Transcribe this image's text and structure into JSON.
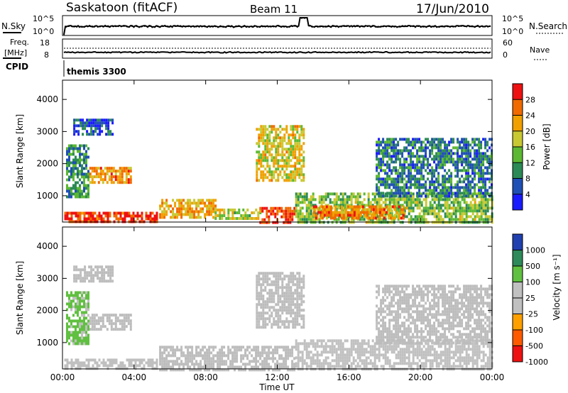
{
  "header": {
    "station": "Saskatoon (fitACF)",
    "beam": "Beam 11",
    "date": "17/Jun/2010"
  },
  "nsky_panel": {
    "left_label": "N.Sky",
    "right_label": "N.Search",
    "left_ticks": [
      "10^5",
      "10^0"
    ],
    "right_ticks": [
      "10^5",
      "10^0"
    ]
  },
  "freq_panel": {
    "left_label_1": "Freq.",
    "left_label_2": "[MHz]",
    "right_label": "Nave",
    "left_ticks": [
      "18",
      "8"
    ],
    "right_ticks": [
      "60",
      "0"
    ]
  },
  "cpid": {
    "label": "CPID",
    "program": "themis 3300"
  },
  "power_panel": {
    "ylabel": "Slant Range [km]",
    "yticks": [
      "4000",
      "3000",
      "2000",
      "1000"
    ],
    "colorbar_label": "Power [dB]",
    "colorbar_ticks": [
      "28",
      "24",
      "20",
      "16",
      "12",
      "8",
      "4"
    ]
  },
  "velocity_panel": {
    "ylabel": "Slant Range [km]",
    "yticks": [
      "4000",
      "3000",
      "2000",
      "1000"
    ],
    "colorbar_label": "Velocity [m s⁻¹]",
    "colorbar_ticks": [
      "1000",
      "500",
      "100",
      "25",
      "-25",
      "-100",
      "-500",
      "-1000"
    ]
  },
  "xaxis": {
    "label": "Time UT",
    "ticks": [
      "00:00",
      "04:00",
      "08:00",
      "12:00",
      "16:00",
      "20:00",
      "00:00"
    ]
  },
  "colors": {
    "power_scale": [
      "#1a1aff",
      "#1f4fb5",
      "#2b8a55",
      "#5cb832",
      "#c8c832",
      "#f0a000",
      "#f06a00",
      "#ee1111"
    ],
    "velocity_scale": [
      "#ee1111",
      "#ff5a00",
      "#ffa000",
      "#c0c0c0",
      "#c0c0c0",
      "#60c040",
      "#2e8a5a",
      "#2040b0"
    ],
    "ground_scatter": "#bcbcbc"
  },
  "chart_data": {
    "type": "heatmap",
    "x": {
      "label": "Time UT",
      "range_hours": [
        0,
        24
      ],
      "ticks": [
        "00:00",
        "04:00",
        "08:00",
        "12:00",
        "16:00",
        "20:00",
        "00:00"
      ]
    },
    "y": {
      "label": "Slant Range [km]",
      "range_km": [
        180,
        4600
      ]
    },
    "panels": [
      {
        "name": "Power",
        "unit": "dB",
        "scale": [
          0,
          30
        ],
        "regions": [
          {
            "t0": 0.1,
            "t1": 5.3,
            "r0": 180,
            "r1": 500,
            "value": 27
          },
          {
            "t0": 5.4,
            "t1": 8.5,
            "r0": 300,
            "r1": 900,
            "value": 20
          },
          {
            "t0": 8.5,
            "t1": 11.0,
            "r0": 300,
            "r1": 600,
            "value": 16
          },
          {
            "t0": 11.0,
            "t1": 13.0,
            "r0": 180,
            "r1": 650,
            "value": 27
          },
          {
            "t0": 13.0,
            "t1": 24.0,
            "r0": 180,
            "r1": 1100,
            "value": 14
          },
          {
            "t0": 14.0,
            "t1": 19.0,
            "r0": 300,
            "r1": 700,
            "value": 23
          },
          {
            "t0": 0.2,
            "t1": 1.5,
            "r0": 1000,
            "r1": 2600,
            "value": 10
          },
          {
            "t0": 1.5,
            "t1": 3.8,
            "r0": 1400,
            "r1": 1900,
            "value": 22
          },
          {
            "t0": 0.6,
            "t1": 2.8,
            "r0": 2900,
            "r1": 3400,
            "value": 6
          },
          {
            "t0": 10.8,
            "t1": 13.5,
            "r0": 1500,
            "r1": 3200,
            "value": 18
          },
          {
            "t0": 17.5,
            "t1": 24.0,
            "r0": 1000,
            "r1": 2800,
            "value": 8
          }
        ]
      },
      {
        "name": "Velocity",
        "unit": "m s^-1",
        "scale": [
          -1000,
          1000
        ],
        "regions": [
          {
            "t0": 0.1,
            "t1": 5.3,
            "r0": 180,
            "r1": 500,
            "value": 50
          },
          {
            "t0": 5.4,
            "t1": 13.0,
            "r0": 180,
            "r1": 900,
            "value": 0
          },
          {
            "t0": 13.0,
            "t1": 24.0,
            "r0": 180,
            "r1": 1100,
            "value": -50
          },
          {
            "t0": 0.2,
            "t1": 1.5,
            "r0": 1000,
            "r1": 2600,
            "value": 300
          },
          {
            "t0": 1.5,
            "t1": 3.8,
            "r0": 1400,
            "r1": 1900,
            "value": 0
          },
          {
            "t0": 0.6,
            "t1": 2.8,
            "r0": 2900,
            "r1": 3400,
            "value": 0
          },
          {
            "t0": 10.8,
            "t1": 13.5,
            "r0": 1500,
            "r1": 3200,
            "value": 0
          },
          {
            "t0": 17.5,
            "t1": 24.0,
            "r0": 1000,
            "r1": 2800,
            "value": 0
          }
        ]
      }
    ]
  }
}
